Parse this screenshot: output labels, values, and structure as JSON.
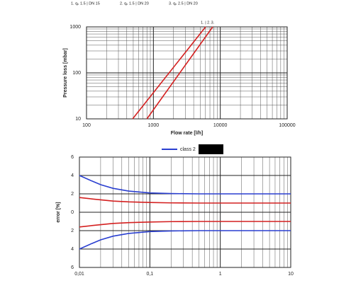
{
  "chart_data": [
    {
      "type": "line",
      "legend_items": [
        "1. qₚ 1.5 | DN 15",
        "2. qₚ 1.5 | DN 20",
        "3. qₚ 2.5 | DN 20"
      ],
      "annotations": [
        "1. | 2.",
        "3."
      ],
      "x_label": "Flow rate [l/h]",
      "y_label": "Pressure loss [mbar]",
      "xlog": true,
      "ylog": true,
      "grid": true,
      "xlim": [
        100,
        100000
      ],
      "ylim": [
        10,
        1000
      ],
      "xticks": [
        100,
        1000,
        10000,
        100000
      ],
      "yticks": [
        10,
        100,
        1000
      ],
      "series": [
        {
          "color": "#d42020",
          "x": [
            489,
            6030
          ],
          "values": [
            10,
            1000
          ]
        },
        {
          "color": "#d42020",
          "x": [
            800,
            7700
          ],
          "values": [
            10,
            1000
          ]
        }
      ]
    },
    {
      "type": "line",
      "y_label": "error [%]",
      "xlog": true,
      "ylog": false,
      "grid": true,
      "xlim": [
        0.01,
        10
      ],
      "ylim": [
        -6,
        6
      ],
      "xticks": [
        {
          "value": 0.01,
          "label": "0,01"
        },
        {
          "value": 0.1,
          "label": "0,1"
        },
        1,
        10
      ],
      "yticks": [
        6,
        4,
        2,
        0,
        {
          "value": -2,
          "label": "2"
        },
        {
          "value": -4,
          "label": "4"
        },
        {
          "value": -6,
          "label": "6"
        }
      ],
      "series": [
        {
          "name": "class 2",
          "color": "#2a3fd0",
          "x": [
            0.01,
            0.015,
            0.02,
            0.03,
            0.05,
            0.1,
            0.2,
            0.5,
            1,
            2,
            5,
            10
          ],
          "values": [
            4,
            3.4,
            3.0,
            2.6,
            2.3,
            2.1,
            2.03,
            2.0,
            2,
            2,
            2,
            2
          ]
        },
        {
          "color": "#2a3fd0",
          "x": [
            0.01,
            0.015,
            0.02,
            0.03,
            0.05,
            0.1,
            0.2,
            0.5,
            1,
            2,
            5,
            10
          ],
          "values": [
            -4,
            -3.4,
            -3.0,
            -2.6,
            -2.3,
            -2.1,
            -2.03,
            -2.0,
            -2,
            -2,
            -2,
            -2
          ]
        },
        {
          "color": "#d42020",
          "x": [
            0.01,
            0.015,
            0.02,
            0.03,
            0.05,
            0.1,
            0.2,
            0.5,
            1,
            2,
            5,
            10
          ],
          "values": [
            1.6,
            1.45,
            1.35,
            1.22,
            1.13,
            1.06,
            1.02,
            1.0,
            1,
            1,
            1,
            1
          ]
        },
        {
          "color": "#d42020",
          "x": [
            0.01,
            0.015,
            0.02,
            0.03,
            0.05,
            0.1,
            0.2,
            0.5,
            1,
            2,
            5,
            10
          ],
          "values": [
            -1.6,
            -1.45,
            -1.35,
            -1.22,
            -1.13,
            -1.06,
            -1.02,
            -1.0,
            -1,
            -1,
            -1,
            -1
          ]
        }
      ]
    }
  ]
}
